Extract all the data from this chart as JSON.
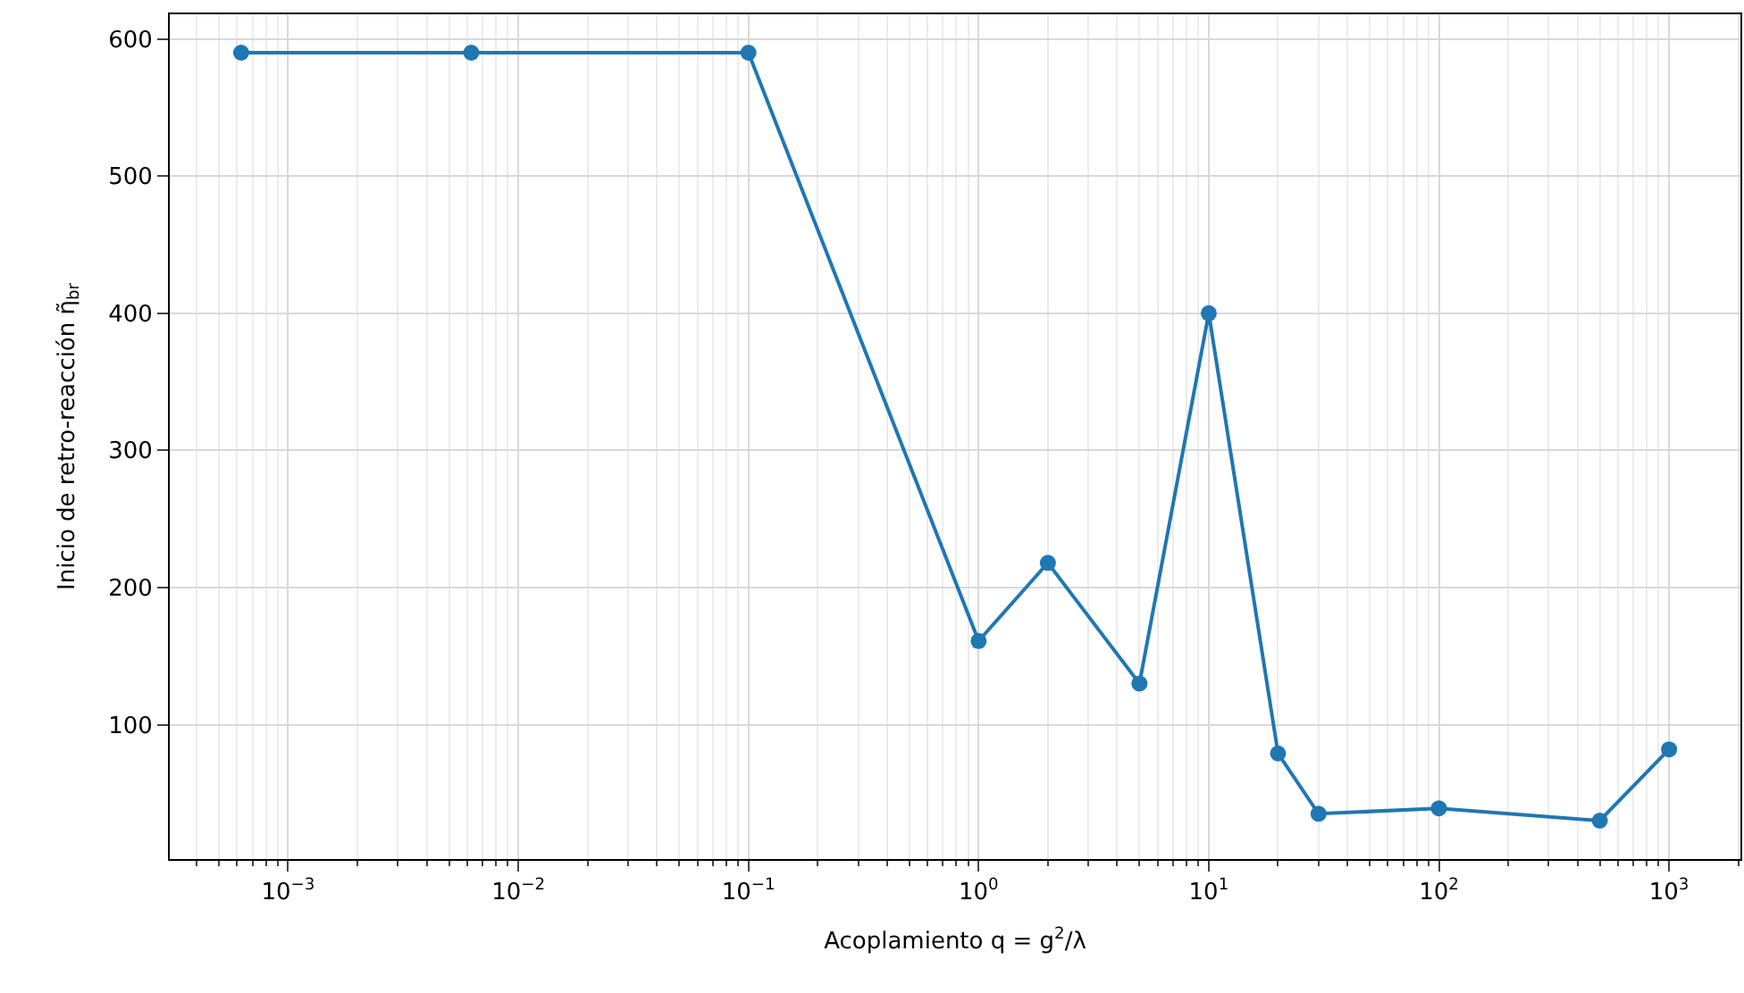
{
  "chart_data": {
    "type": "line",
    "xlabel": "Acoplamiento q = g$^{2}$/λ",
    "ylabel": "Inicio de retro-reacción η̃$_{br}$",
    "x": [
      0.000625,
      0.00625,
      0.1,
      1,
      2,
      5,
      10,
      20,
      30,
      100,
      500,
      1000
    ],
    "series": [
      {
        "color": "#1f77b4",
        "values": [
          590,
          590,
          590,
          161,
          218,
          130,
          400,
          79,
          35,
          39,
          30,
          82
        ]
      }
    ],
    "log": "x",
    "xlim": [
      0.000306,
      2042
    ],
    "xticks": [
      {
        "value": 0.001,
        "label": "10$^{−3}$"
      },
      {
        "value": 0.01,
        "label": "10$^{−2}$"
      },
      {
        "value": 0.1,
        "label": "10$^{−1}$"
      },
      {
        "value": 1,
        "label": "10$^{0}$"
      },
      {
        "value": 10,
        "label": "10$^{1}$"
      },
      {
        "value": 100,
        "label": "10$^{2}$"
      },
      {
        "value": 1000,
        "label": "10$^{3}$"
      }
    ],
    "ylim": [
      2,
      618
    ],
    "yticks": [
      100,
      200,
      300,
      400,
      500,
      600
    ],
    "grid": true,
    "marker": "circle",
    "line_style": "solid"
  }
}
